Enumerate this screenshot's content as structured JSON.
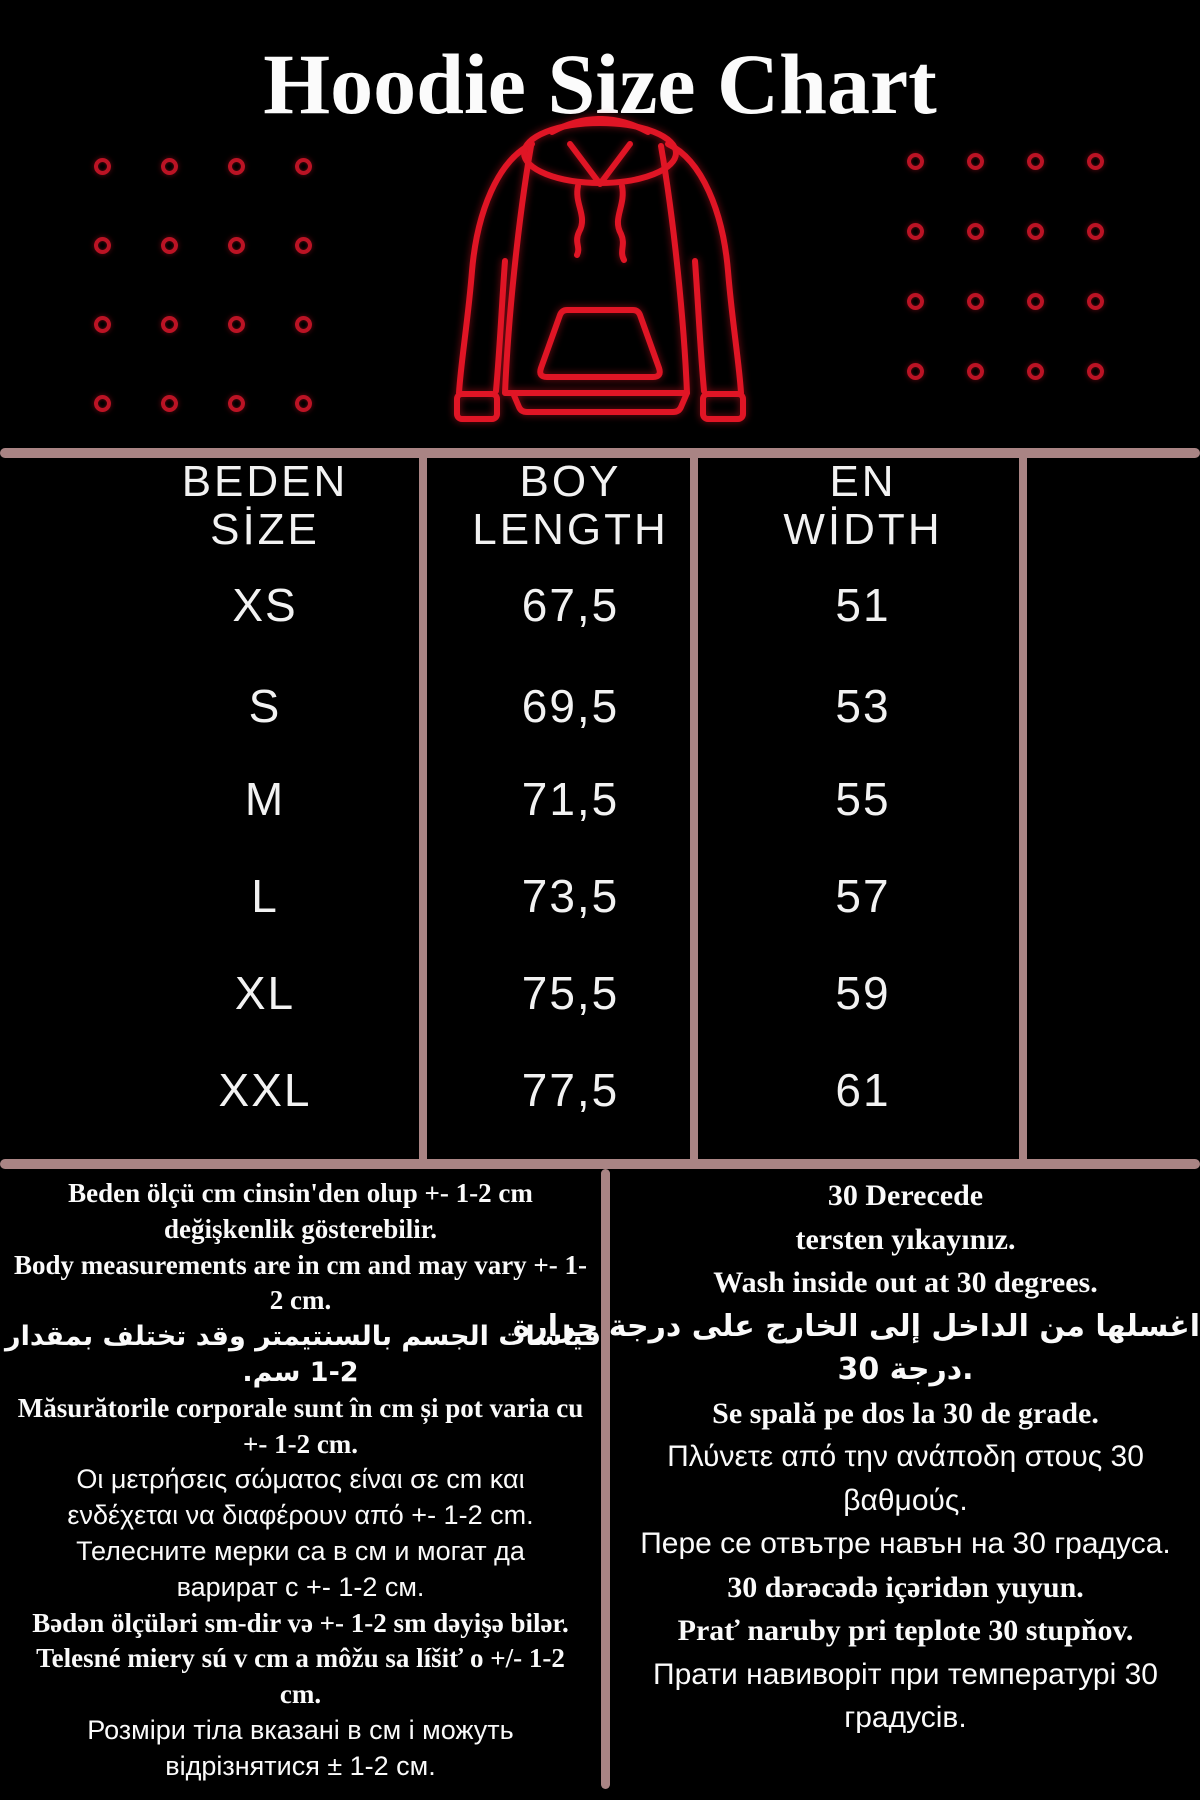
{
  "title": "Hoodie Size Chart",
  "colors": {
    "background": "#000000",
    "table_line": "#a98484",
    "text": "#f2f2f2",
    "hoodie_red": "#e01525",
    "dot_red": "#bb1324"
  },
  "table": {
    "columns": [
      {
        "line1": "BEDEN",
        "line2": "SİZE"
      },
      {
        "line1": "BOY",
        "line2": "LENGTH"
      },
      {
        "line1": "EN",
        "line2": "WİDTH"
      }
    ],
    "rows": [
      {
        "size": "XS",
        "length": "67,5",
        "width": "51"
      },
      {
        "size": "S",
        "length": "69,5",
        "width": "53"
      },
      {
        "size": "M",
        "length": "71,5",
        "width": "55"
      },
      {
        "size": "L",
        "length": "73,5",
        "width": "57"
      },
      {
        "size": "XL",
        "length": "75,5",
        "width": "59"
      },
      {
        "size": "XXL",
        "length": "77,5",
        "width": "61"
      }
    ]
  },
  "notes_measurements": {
    "lines": [
      {
        "text": "Beden ölçü cm cinsin'den olup +- 1-2 cm",
        "font": "serif"
      },
      {
        "text": "değişkenlik gösterebilir.",
        "font": "serif"
      },
      {
        "text": "Body measurements are in cm and may vary +- 1-",
        "font": "serif"
      },
      {
        "text": "2 cm.",
        "font": "serif"
      },
      {
        "text": "قياسات الجسم بالسنتيمتر وقد تختلف بمقدار +-",
        "font": "arabic",
        "dir": "rtl"
      },
      {
        "text": "1-2 سم.",
        "font": "arabic",
        "dir": "rtl"
      },
      {
        "text": "Măsurătorile corporale sunt în cm și pot varia cu",
        "font": "serif"
      },
      {
        "text": "+- 1-2 cm.",
        "font": "serif"
      },
      {
        "text": "Οι μετρήσεις σώματος είναι σε cm και",
        "font": "sans"
      },
      {
        "text": "ενδέχεται να διαφέρουν από +- 1-2 cm.",
        "font": "sans"
      },
      {
        "text": "Телесните мерки са в см и могат да",
        "font": "sans"
      },
      {
        "text": "варират с +- 1-2 см.",
        "font": "sans"
      },
      {
        "text": "Bədən ölçüləri sm-dir və +- 1-2 sm dəyişə bilər.",
        "font": "serif"
      },
      {
        "text": "Telesné miery sú v cm a môžu sa líšiť o +/- 1-2",
        "font": "serif"
      },
      {
        "text": "cm.",
        "font": "serif"
      },
      {
        "text": "Розміри тіла вказані в см і можуть",
        "font": "sans"
      },
      {
        "text": "відрізнятися ± 1-2 см.",
        "font": "sans"
      }
    ]
  },
  "notes_washing": {
    "lines": [
      {
        "text": "30 Derecede",
        "font": "serif"
      },
      {
        "text": "tersten yıkayınız.",
        "font": "serif"
      },
      {
        "text": "Wash inside out at 30 degrees.",
        "font": "serif"
      },
      {
        "text": "اغسلها من الداخل إلى الخارج على درجة حرارة",
        "font": "arabic",
        "dir": "rtl"
      },
      {
        "text": "30 درجة.",
        "font": "arabic",
        "dir": "ltr"
      },
      {
        "text": "Se spală pe dos la 30 de grade.",
        "font": "serif"
      },
      {
        "text": "Πλύνετε από την ανάποδη στους 30",
        "font": "sans"
      },
      {
        "text": "βαθμούς.",
        "font": "sans"
      },
      {
        "text": "Пере се отвътре навън на 30 градуса.",
        "font": "sans"
      },
      {
        "text": "30 dərəcədə içəridən yuyun.",
        "font": "serif"
      },
      {
        "text": "Prať naruby pri teplote 30 stupňov.",
        "font": "serif"
      },
      {
        "text": "Прати навиворіт при температурі 30",
        "font": "sans"
      },
      {
        "text": "градусів.",
        "font": "sans"
      }
    ]
  },
  "decor": {
    "dot_grid": {
      "rows": 4,
      "cols": 4
    },
    "hoodie_icon": "hoodie-outline"
  }
}
